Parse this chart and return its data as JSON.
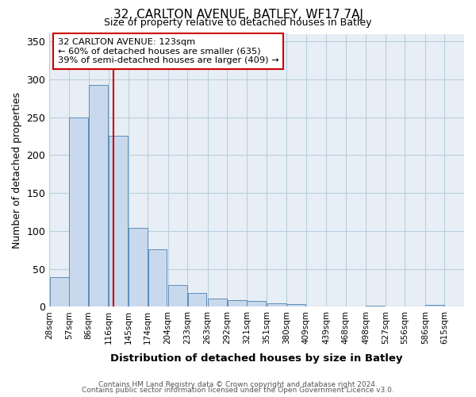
{
  "title": "32, CARLTON AVENUE, BATLEY, WF17 7AJ",
  "subtitle": "Size of property relative to detached houses in Batley",
  "xlabel": "Distribution of detached houses by size in Batley",
  "ylabel": "Number of detached properties",
  "bin_labels": [
    "28sqm",
    "57sqm",
    "86sqm",
    "116sqm",
    "145sqm",
    "174sqm",
    "204sqm",
    "233sqm",
    "263sqm",
    "292sqm",
    "321sqm",
    "351sqm",
    "380sqm",
    "409sqm",
    "439sqm",
    "468sqm",
    "498sqm",
    "527sqm",
    "556sqm",
    "586sqm",
    "615sqm"
  ],
  "bin_edges": [
    28,
    57,
    86,
    116,
    145,
    174,
    204,
    233,
    263,
    292,
    321,
    351,
    380,
    409,
    439,
    468,
    498,
    527,
    556,
    586,
    615
  ],
  "bin_width": 29,
  "bar_heights": [
    39,
    250,
    293,
    225,
    104,
    76,
    29,
    18,
    11,
    9,
    8,
    5,
    4,
    0,
    0,
    0,
    1,
    0,
    0,
    2,
    0
  ],
  "bar_color": "#c9d9ed",
  "bar_edge_color": "#5b8db8",
  "grid_color": "#b8cfe0",
  "bg_color": "#e8eef5",
  "vline_x": 123,
  "vline_color": "#cc0000",
  "annotation_title": "32 CARLTON AVENUE: 123sqm",
  "annotation_line1": "← 60% of detached houses are smaller (635)",
  "annotation_line2": "39% of semi-detached houses are larger (409) →",
  "annotation_box_edgecolor": "#cc0000",
  "ylim": [
    0,
    360
  ],
  "yticks": [
    0,
    50,
    100,
    150,
    200,
    250,
    300,
    350
  ],
  "footer1": "Contains HM Land Registry data © Crown copyright and database right 2024.",
  "footer2": "Contains public sector information licensed under the Open Government Licence v3.0."
}
